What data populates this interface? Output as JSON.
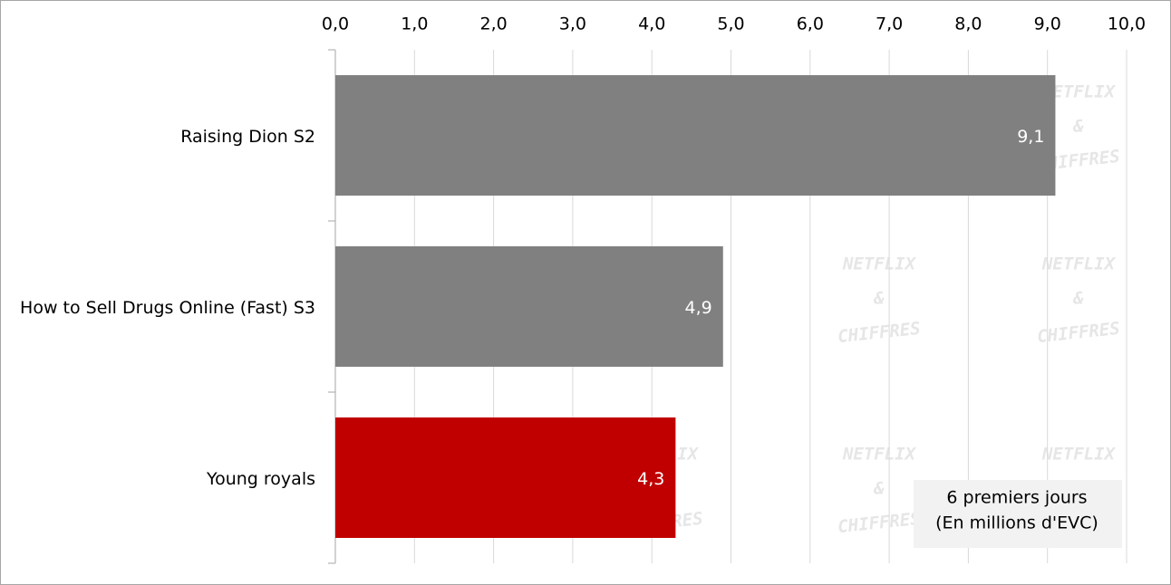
{
  "chart_data": {
    "type": "hbar",
    "categories": [
      "Raising Dion S2",
      "How to Sell Drugs Online (Fast) S3",
      "Young royals"
    ],
    "values": [
      9.1,
      4.9,
      4.3
    ],
    "value_labels": [
      "9,1",
      "4,9",
      "4,3"
    ],
    "colors": [
      "#808080",
      "#808080",
      "#c00000"
    ],
    "xlim": [
      0,
      10
    ],
    "xticks": [
      {
        "value": 0,
        "label": "0,0"
      },
      {
        "value": 1,
        "label": "1,0"
      },
      {
        "value": 2,
        "label": "2,0"
      },
      {
        "value": 3,
        "label": "3,0"
      },
      {
        "value": 4,
        "label": "4,0"
      },
      {
        "value": 5,
        "label": "5,0"
      },
      {
        "value": 6,
        "label": "6,0"
      },
      {
        "value": 7,
        "label": "7,0"
      },
      {
        "value": 8,
        "label": "8,0"
      },
      {
        "value": 9,
        "label": "9,0"
      },
      {
        "value": 10,
        "label": "10,0"
      }
    ],
    "grid": true,
    "annotation": [
      "6 premiers jours",
      "(En millions d'EVC)"
    ],
    "watermark": [
      "NETFLIX",
      "&",
      "CHIFFRES"
    ]
  }
}
